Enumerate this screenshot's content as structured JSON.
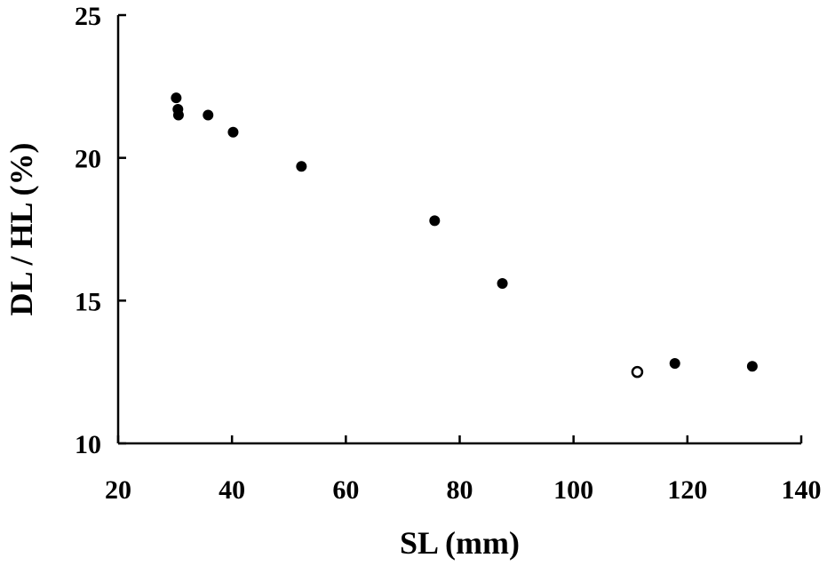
{
  "chart_data": {
    "type": "scatter",
    "title": "",
    "xlabel": "SL (mm)",
    "ylabel": "DL / HL (%)",
    "xlim": [
      20,
      140
    ],
    "ylim": [
      10,
      25
    ],
    "xticks": [
      20,
      40,
      60,
      80,
      100,
      120,
      140
    ],
    "yticks": [
      10,
      15,
      20,
      25
    ],
    "grid": false,
    "legend": "none",
    "series": [
      {
        "marker": "filled-circle",
        "color": "#000000",
        "points": [
          {
            "x": 30.2,
            "y": 22.1
          },
          {
            "x": 30.5,
            "y": 21.7
          },
          {
            "x": 30.6,
            "y": 21.5
          },
          {
            "x": 35.8,
            "y": 21.5
          },
          {
            "x": 40.2,
            "y": 20.9
          },
          {
            "x": 52.2,
            "y": 19.7
          },
          {
            "x": 75.6,
            "y": 17.8
          },
          {
            "x": 87.5,
            "y": 15.6
          },
          {
            "x": 117.8,
            "y": 12.8
          },
          {
            "x": 131.4,
            "y": 12.7
          }
        ]
      },
      {
        "marker": "open-circle",
        "color": "#000000",
        "points": [
          {
            "x": 111.2,
            "y": 12.5
          }
        ]
      }
    ]
  }
}
